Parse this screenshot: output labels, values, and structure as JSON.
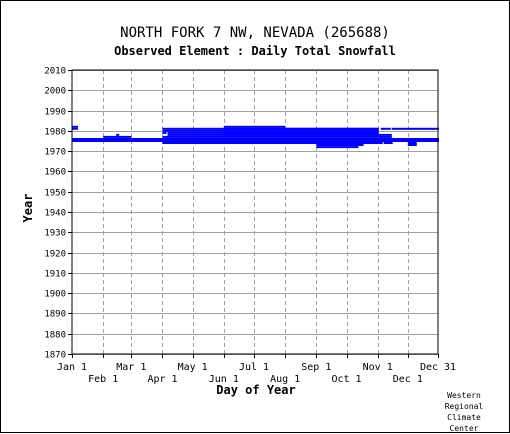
{
  "chart_data": {
    "type": "scatter",
    "title": "NORTH FORK 7 NW, NEVADA   (265688)",
    "subtitle": "Observed Element : Daily Total Snowfall",
    "xlabel": "Day of Year",
    "ylabel": "Year",
    "xlim": [
      1,
      365
    ],
    "ylim": [
      1870,
      2010
    ],
    "grid": true,
    "x_ticks_row1": [
      {
        "label": "Jan 1",
        "day": 1
      },
      {
        "label": "Mar 1",
        "day": 60
      },
      {
        "label": "May 1",
        "day": 121
      },
      {
        "label": "Jul 1",
        "day": 182
      },
      {
        "label": "Sep 1",
        "day": 244
      },
      {
        "label": "Nov 1",
        "day": 305
      },
      {
        "label": "Dec 31",
        "day": 365
      }
    ],
    "x_ticks_row2": [
      {
        "label": "Feb 1",
        "day": 32
      },
      {
        "label": "Apr 1",
        "day": 91
      },
      {
        "label": "Jun 1",
        "day": 152
      },
      {
        "label": "Aug 1",
        "day": 213
      },
      {
        "label": "Oct 1",
        "day": 274
      },
      {
        "label": "Dec 1",
        "day": 335
      }
    ],
    "y_ticks": [
      2010,
      2000,
      1990,
      1980,
      1970,
      1960,
      1950,
      1940,
      1930,
      1920,
      1910,
      1900,
      1890,
      1880,
      1870
    ],
    "series_color": "#0000ff",
    "observations": [
      {
        "year": 1982,
        "start_day": 1,
        "end_day": 6
      },
      {
        "year": 1981,
        "start_day": 1,
        "end_day": 6
      },
      {
        "year": 1976,
        "start_day": 1,
        "end_day": 365
      },
      {
        "year": 1975,
        "start_day": 1,
        "end_day": 365
      },
      {
        "year": 1978,
        "start_day": 45,
        "end_day": 47
      },
      {
        "year": 1977,
        "start_day": 32,
        "end_day": 59
      },
      {
        "year": 1976,
        "start_day": 32,
        "end_day": 90
      },
      {
        "year": 1981,
        "start_day": 91,
        "end_day": 305
      },
      {
        "year": 1980,
        "start_day": 91,
        "end_day": 305
      },
      {
        "year": 1979,
        "start_day": 91,
        "end_day": 94
      },
      {
        "year": 1979,
        "start_day": 96,
        "end_day": 305
      },
      {
        "year": 1978,
        "start_day": 96,
        "end_day": 305
      },
      {
        "year": 1977,
        "start_day": 91,
        "end_day": 305
      },
      {
        "year": 1976,
        "start_day": 91,
        "end_day": 305
      },
      {
        "year": 1975,
        "start_day": 91,
        "end_day": 305
      },
      {
        "year": 1974,
        "start_day": 91,
        "end_day": 305
      },
      {
        "year": 1982,
        "start_day": 152,
        "end_day": 212
      },
      {
        "year": 1981,
        "start_day": 152,
        "end_day": 305
      },
      {
        "year": 1980,
        "start_day": 152,
        "end_day": 305
      },
      {
        "year": 1979,
        "start_day": 152,
        "end_day": 305
      },
      {
        "year": 1978,
        "start_day": 152,
        "end_day": 305
      },
      {
        "year": 1974,
        "start_day": 244,
        "end_day": 290
      },
      {
        "year": 1973,
        "start_day": 244,
        "end_day": 290
      },
      {
        "year": 1972,
        "start_day": 244,
        "end_day": 285
      },
      {
        "year": 1981,
        "start_day": 308,
        "end_day": 317
      },
      {
        "year": 1981,
        "start_day": 319,
        "end_day": 365
      },
      {
        "year": 1978,
        "start_day": 306,
        "end_day": 318
      },
      {
        "year": 1977,
        "start_day": 306,
        "end_day": 318
      },
      {
        "year": 1976,
        "start_day": 306,
        "end_day": 365
      },
      {
        "year": 1975,
        "start_day": 306,
        "end_day": 365
      },
      {
        "year": 1974,
        "start_day": 306,
        "end_day": 309
      },
      {
        "year": 1974,
        "start_day": 311,
        "end_day": 319
      },
      {
        "year": 1974,
        "start_day": 335,
        "end_day": 343
      },
      {
        "year": 1973,
        "start_day": 335,
        "end_day": 343
      }
    ]
  },
  "credit_lines": [
    "Western",
    "Regional",
    "Climate",
    "Center"
  ]
}
